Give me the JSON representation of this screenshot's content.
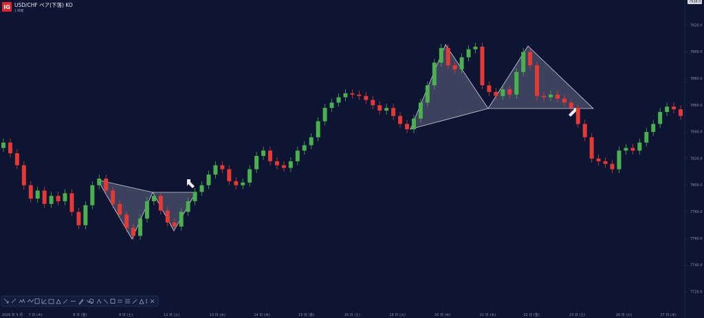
{
  "header": {
    "logo": "IG",
    "title": "USD/CHF ペア(下落) KO",
    "subtitle": "1 時間"
  },
  "chart_data": {
    "type": "candlestick",
    "price_marker": {
      "value": 7938,
      "label": "7938.0"
    },
    "up_color": "#4caf50",
    "down_color": "#e53935",
    "candles": {
      "open": [
        7828,
        7832,
        7824,
        7815,
        7800,
        7790,
        7796,
        7786,
        7792,
        7788,
        7794,
        7780,
        7770,
        7785,
        7800,
        7805,
        7796,
        7786,
        7778,
        7768,
        7762,
        7775,
        7788,
        7792,
        7781,
        7772,
        7769,
        7780,
        7788,
        7795,
        7800,
        7808,
        7815,
        7812,
        7803,
        7800,
        7802,
        7812,
        7822,
        7826,
        7818,
        7815,
        7813,
        7818,
        7826,
        7830,
        7836,
        7848,
        7858,
        7862,
        7866,
        7869,
        7868,
        7867,
        7864,
        7860,
        7856,
        7858,
        7852,
        7846,
        7842,
        7850,
        7862,
        7875,
        7892,
        7903,
        7890,
        7887,
        7896,
        7902,
        7904,
        7875,
        7870,
        7867,
        7872,
        7868,
        7885,
        7900,
        7890,
        7867,
        7866,
        7868,
        7865,
        7862,
        7858,
        7846,
        7836,
        7820,
        7818,
        7816,
        7812,
        7826,
        7828,
        7826,
        7832,
        7840,
        7846,
        7855,
        7859,
        7857
      ],
      "high": [
        7835,
        7835,
        7827,
        7818,
        7803,
        7799,
        7799,
        7795,
        7795,
        7797,
        7797,
        7783,
        7788,
        7803,
        7808,
        7808,
        7799,
        7789,
        7781,
        7771,
        7778,
        7791,
        7795,
        7795,
        7784,
        7775,
        7783,
        7791,
        7798,
        7803,
        7811,
        7818,
        7818,
        7815,
        7806,
        7805,
        7815,
        7825,
        7829,
        7829,
        7821,
        7818,
        7821,
        7829,
        7833,
        7839,
        7851,
        7861,
        7865,
        7869,
        7872,
        7872,
        7871,
        7870,
        7867,
        7863,
        7861,
        7861,
        7855,
        7849,
        7853,
        7865,
        7878,
        7895,
        7906,
        7906,
        7893,
        7899,
        7905,
        7907,
        7907,
        7878,
        7873,
        7875,
        7875,
        7888,
        7903,
        7903,
        7893,
        7870,
        7871,
        7871,
        7868,
        7865,
        7861,
        7849,
        7839,
        7823,
        7821,
        7819,
        7829,
        7831,
        7831,
        7835,
        7843,
        7849,
        7858,
        7862,
        7862,
        7860
      ],
      "low": [
        7825,
        7821,
        7812,
        7797,
        7787,
        7787,
        7783,
        7783,
        7785,
        7785,
        7777,
        7767,
        7767,
        7782,
        7797,
        7793,
        7783,
        7775,
        7765,
        7759,
        7759,
        7772,
        7785,
        7778,
        7769,
        7766,
        7766,
        7777,
        7785,
        7792,
        7797,
        7805,
        7809,
        7800,
        7797,
        7797,
        7799,
        7809,
        7819,
        7815,
        7812,
        7810,
        7810,
        7815,
        7823,
        7827,
        7833,
        7845,
        7855,
        7859,
        7863,
        7865,
        7864,
        7861,
        7857,
        7853,
        7853,
        7849,
        7843,
        7839,
        7839,
        7847,
        7859,
        7872,
        7889,
        7887,
        7884,
        7884,
        7893,
        7899,
        7872,
        7867,
        7864,
        7864,
        7865,
        7865,
        7882,
        7887,
        7864,
        7863,
        7863,
        7862,
        7859,
        7855,
        7843,
        7833,
        7817,
        7815,
        7813,
        7809,
        7809,
        7823,
        7823,
        7823,
        7829,
        7837,
        7843,
        7852,
        7854,
        7849
      ],
      "close": [
        7832,
        7824,
        7815,
        7800,
        7790,
        7796,
        7786,
        7792,
        7788,
        7794,
        7780,
        7770,
        7785,
        7800,
        7805,
        7796,
        7786,
        7778,
        7768,
        7762,
        7775,
        7788,
        7792,
        7781,
        7772,
        7769,
        7780,
        7788,
        7795,
        7800,
        7808,
        7815,
        7812,
        7803,
        7800,
        7802,
        7812,
        7822,
        7826,
        7818,
        7815,
        7813,
        7818,
        7826,
        7830,
        7836,
        7848,
        7858,
        7862,
        7866,
        7869,
        7868,
        7867,
        7864,
        7860,
        7856,
        7858,
        7852,
        7846,
        7842,
        7850,
        7862,
        7875,
        7892,
        7903,
        7890,
        7887,
        7896,
        7902,
        7904,
        7875,
        7870,
        7867,
        7872,
        7868,
        7885,
        7900,
        7890,
        7867,
        7866,
        7868,
        7865,
        7862,
        7858,
        7846,
        7836,
        7820,
        7818,
        7816,
        7812,
        7826,
        7828,
        7826,
        7832,
        7840,
        7846,
        7855,
        7859,
        7857,
        7852
      ]
    },
    "ylim": [
      7704.5,
      7939
    ],
    "yticks": [
      {
        "value": 7720,
        "label": "7720.0"
      },
      {
        "value": 7740,
        "label": "7740.0"
      },
      {
        "value": 7760,
        "label": "7760.0"
      },
      {
        "value": 7780,
        "label": "7780.0"
      },
      {
        "value": 7800,
        "label": "7800.0"
      },
      {
        "value": 7820,
        "label": "7820.0"
      },
      {
        "value": 7840,
        "label": "7840.0"
      },
      {
        "value": 7860,
        "label": "7860.0"
      },
      {
        "value": 7880,
        "label": "7880.0"
      },
      {
        "value": 7900,
        "label": "7900.0"
      },
      {
        "value": 7920,
        "label": "7920.0"
      }
    ],
    "xlim": [
      0,
      100
    ],
    "xticks": [
      {
        "value": 1.8,
        "label": "2026 年 5 月"
      },
      {
        "value": 5.2,
        "label": "7 日 (木)"
      },
      {
        "value": 11.7,
        "label": "8 日 (金)"
      },
      {
        "value": 18.4,
        "label": "9 日 (土)"
      },
      {
        "value": 25.1,
        "label": "12 日 (火)"
      },
      {
        "value": 31.8,
        "label": "13 日 (水)"
      },
      {
        "value": 38.3,
        "label": "14 日 (木)"
      },
      {
        "value": 44.8,
        "label": "15 日 (金)"
      },
      {
        "value": 51.5,
        "label": "16 日 (土)"
      },
      {
        "value": 58.1,
        "label": "19 日 (火)"
      },
      {
        "value": 64.7,
        "label": "20 日 (水)"
      },
      {
        "value": 71.3,
        "label": "21 日 (木)"
      },
      {
        "value": 77.7,
        "label": "22 日 (金)"
      },
      {
        "value": 84.4,
        "label": "23 日 (土)"
      },
      {
        "value": 91.2,
        "label": "26 日 (火)"
      },
      {
        "value": 97.7,
        "label": "27 日 (水)"
      }
    ]
  }
}
